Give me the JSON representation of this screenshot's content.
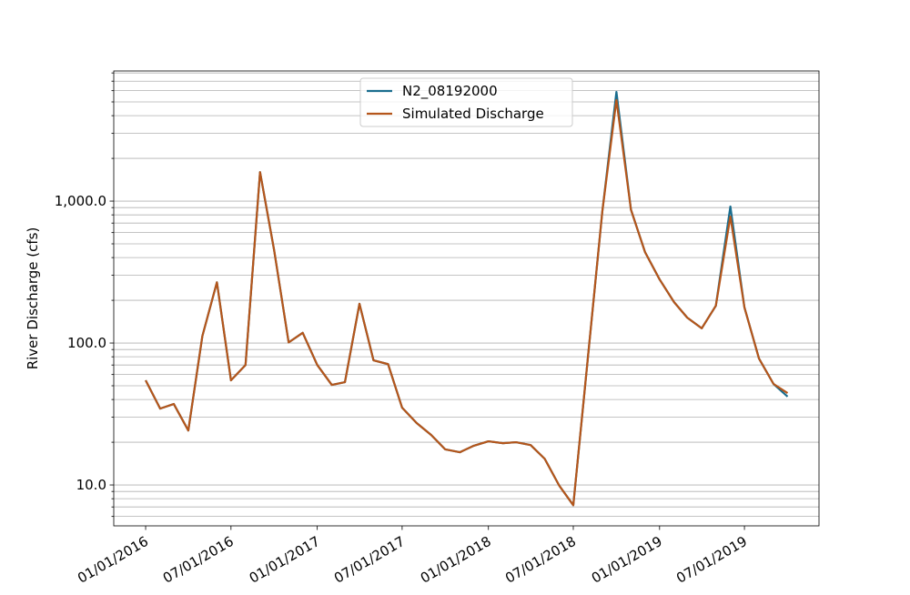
{
  "chart_data": {
    "type": "line",
    "ylabel": "River Discharge (cfs)",
    "x": [
      "2016-01-01",
      "2016-02-01",
      "2016-03-01",
      "2016-04-01",
      "2016-05-01",
      "2016-06-01",
      "2016-07-01",
      "2016-08-01",
      "2016-09-01",
      "2016-10-01",
      "2016-11-01",
      "2016-12-01",
      "2017-01-01",
      "2017-02-01",
      "2017-03-01",
      "2017-04-01",
      "2017-05-01",
      "2017-06-01",
      "2017-07-01",
      "2017-08-01",
      "2017-09-01",
      "2017-10-01",
      "2017-11-01",
      "2017-12-01",
      "2018-01-01",
      "2018-02-01",
      "2018-03-01",
      "2018-04-01",
      "2018-05-01",
      "2018-06-01",
      "2018-07-01",
      "2018-08-01",
      "2018-09-01",
      "2018-10-01",
      "2018-11-01",
      "2018-12-01",
      "2019-01-01",
      "2019-02-01",
      "2019-03-01",
      "2019-04-01",
      "2019-05-01",
      "2019-06-01",
      "2019-07-01",
      "2019-08-01",
      "2019-09-01",
      "2019-10-01"
    ],
    "series": [
      {
        "name": "N2_08192000",
        "color": "#1a6d8e",
        "values": [
          54.6,
          34.5,
          37.2,
          24.2,
          112,
          268,
          54.6,
          70,
          1600,
          451,
          101,
          118,
          70,
          50.7,
          53,
          189,
          75.5,
          71,
          35,
          27.3,
          22.5,
          17.8,
          17,
          18.9,
          20.3,
          19.7,
          20,
          19.1,
          15.3,
          9.9,
          7.2,
          78,
          850,
          5880,
          870,
          437,
          281,
          194,
          151,
          127,
          183,
          916,
          178,
          77.8,
          51.5,
          41.9
        ]
      },
      {
        "name": "Simulated Discharge",
        "color": "#b5561b",
        "values": [
          54.6,
          34.5,
          37.2,
          24.2,
          112,
          268,
          54.6,
          70,
          1600,
          451,
          101,
          118,
          70,
          50.7,
          53,
          189,
          75.5,
          71,
          35,
          27.3,
          22.5,
          17.8,
          17,
          18.9,
          20.3,
          19.7,
          20,
          19.1,
          15.3,
          9.9,
          7.2,
          78,
          850,
          5150,
          870,
          437,
          281,
          194,
          151,
          127,
          183,
          778,
          178,
          77.8,
          51.5,
          44.4
        ]
      }
    ],
    "xlim": [
      "2015-10-25",
      "2019-12-07"
    ],
    "xticks": [
      {
        "value": "2016-01-01",
        "label": "01/01/2016"
      },
      {
        "value": "2016-07-01",
        "label": "07/01/2016"
      },
      {
        "value": "2017-01-01",
        "label": "01/01/2017"
      },
      {
        "value": "2017-07-01",
        "label": "07/01/2017"
      },
      {
        "value": "2018-01-01",
        "label": "01/01/2018"
      },
      {
        "value": "2018-07-01",
        "label": "07/01/2018"
      },
      {
        "value": "2019-01-01",
        "label": "01/01/2019"
      },
      {
        "value": "2019-07-01",
        "label": "07/01/2019"
      }
    ],
    "ylim": [
      5.15,
      8260
    ],
    "log_y": true,
    "yticks": [
      {
        "value": 10,
        "label": "10.0"
      },
      {
        "value": 100,
        "label": "100.0"
      },
      {
        "value": 1000,
        "label": "1,000.0"
      }
    ],
    "yminor": [
      6,
      7,
      8,
      9,
      20,
      30,
      40,
      50,
      60,
      70,
      80,
      90,
      200,
      300,
      400,
      500,
      600,
      700,
      800,
      900,
      2000,
      3000,
      4000,
      5000,
      6000,
      7000,
      8000
    ],
    "grid": true,
    "legend": "upper center"
  }
}
